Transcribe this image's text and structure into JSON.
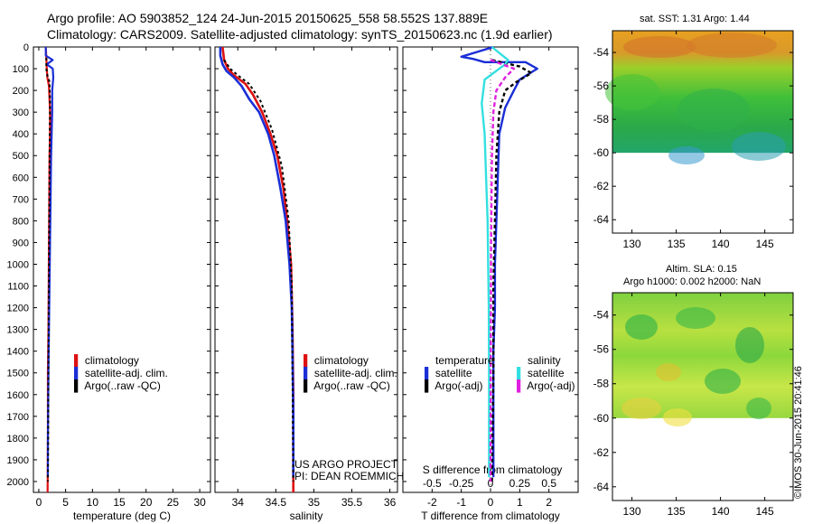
{
  "header": {
    "line1": "Argo profile: AO 5903852_124 24-Jun-2015 20150625_558 58.552S 137.889E",
    "line2": "Climatology: CARS2009. Satellite-adjusted climatology: synTS_20150623.nc (1.9d earlier)"
  },
  "depth_ticks": [
    "0",
    "100",
    "200",
    "300",
    "400",
    "500",
    "600",
    "700",
    "800",
    "900",
    "1000",
    "1100",
    "1200",
    "1300",
    "1400",
    "1500",
    "1600",
    "1700",
    "1800",
    "1900",
    "2000"
  ],
  "colors": {
    "climatology": "#dd1111",
    "satellite": "#1a2fd6",
    "argo": "#000000",
    "sal_satellite": "#33e0e0",
    "sal_argo": "#e020e0"
  },
  "legend": {
    "climatology": "climatology",
    "satellite_adj": "satellite-adj. clim.",
    "argo_raw": "Argo(..raw -QC)",
    "temperature": "temperature",
    "salinity": "salinity",
    "satellite": "satellite",
    "argo_adj": "Argo(-adj)"
  },
  "project": {
    "line1": "US ARGO PROJECT",
    "line2": "PI: DEAN ROEMMICH"
  },
  "map_sst": {
    "title": "sat. SST: 1.31  Argo: 1.44",
    "lat_ticks": [
      "-54",
      "-56",
      "-58",
      "-60",
      "-62",
      "-64"
    ],
    "lon_ticks": [
      "130",
      "135",
      "140",
      "145"
    ]
  },
  "map_sla": {
    "title1": "Altim. SLA: 0.15",
    "title2": "Argo h1000: 0.002 h2000: NaN",
    "lat_ticks": [
      "-54",
      "-56",
      "-58",
      "-60",
      "-62",
      "-64"
    ],
    "lon_ticks": [
      "130",
      "135",
      "140",
      "145"
    ]
  },
  "credit": "©IMOS 30-Jun-2015 20:41:46",
  "chart_data": [
    {
      "type": "line",
      "xlabel": "temperature (deg C)",
      "ylabel": "",
      "xlim": [
        -1,
        32
      ],
      "ylim": [
        0,
        2050
      ],
      "x_ticks": [
        "0",
        "5",
        "10",
        "15",
        "20",
        "25",
        "30"
      ],
      "series": [
        {
          "name": "climatology",
          "x": [
            1.3,
            1.4,
            1.5,
            1.6,
            1.9,
            2.1,
            2.1,
            2.0,
            1.95,
            1.9,
            1.85,
            1.8,
            1.7,
            1.7,
            1.65
          ],
          "y": [
            0,
            50,
            100,
            140,
            180,
            300,
            400,
            500,
            700,
            900,
            1100,
            1300,
            1500,
            1800,
            2050
          ]
        },
        {
          "name": "satellite-adj. clim.",
          "x": [
            1.3,
            1.3,
            2.6,
            1.5,
            2.6,
            2.7,
            2.5,
            2.5,
            2.4,
            2.3,
            2.2,
            2.1,
            2.0,
            1.9,
            1.8,
            1.7,
            1.7
          ],
          "y": [
            0,
            40,
            60,
            80,
            100,
            140,
            200,
            300,
            400,
            500,
            700,
            900,
            1100,
            1300,
            1500,
            1800,
            1980
          ]
        },
        {
          "name": "Argo(..raw -QC)",
          "x": [
            1.4,
            1.4,
            1.6,
            2.0,
            2.1,
            2.05,
            2.0,
            1.95,
            1.9,
            1.85,
            1.8,
            1.75,
            1.7
          ],
          "y": [
            50,
            100,
            130,
            160,
            250,
            400,
            600,
            800,
            1000,
            1200,
            1500,
            1800,
            2000
          ]
        }
      ]
    },
    {
      "type": "line",
      "xlabel": "salinity",
      "ylabel": "",
      "xlim": [
        33.7,
        36.1
      ],
      "ylim": [
        0,
        2050
      ],
      "x_ticks": [
        "34",
        "34.5",
        "35",
        "35.5",
        "36"
      ],
      "series": [
        {
          "name": "climatology",
          "x": [
            33.8,
            33.82,
            33.87,
            33.95,
            34.1,
            34.2,
            34.32,
            34.43,
            34.52,
            34.6,
            34.65,
            34.7,
            34.72,
            34.73,
            34.73
          ],
          "y": [
            0,
            60,
            100,
            130,
            170,
            220,
            300,
            400,
            500,
            650,
            800,
            1000,
            1300,
            1600,
            2050
          ]
        },
        {
          "name": "satellite-adj. clim.",
          "x": [
            33.77,
            33.77,
            33.8,
            33.85,
            33.95,
            34.05,
            34.15,
            34.28,
            34.4,
            34.48,
            34.56,
            34.63,
            34.68,
            34.71,
            34.72,
            34.73,
            34.73
          ],
          "y": [
            0,
            40,
            80,
            110,
            140,
            180,
            240,
            300,
            400,
            500,
            650,
            800,
            1000,
            1200,
            1400,
            1700,
            1980
          ]
        },
        {
          "name": "Argo(..raw -QC)",
          "x": [
            33.82,
            33.9,
            34.0,
            34.15,
            34.3,
            34.45,
            34.58,
            34.67,
            34.71,
            34.72,
            34.73
          ],
          "y": [
            60,
            100,
            130,
            170,
            250,
            380,
            550,
            800,
            1100,
            1500,
            2000
          ]
        }
      ]
    },
    {
      "type": "line",
      "xlabel": "T difference from climatology",
      "ylabel": "",
      "xlim": [
        -3,
        3
      ],
      "ylim": [
        0,
        2050
      ],
      "x_ticks": [
        "-2",
        "-1",
        "0",
        "1",
        "2"
      ],
      "top_axis_label": "S difference from climatology",
      "top_ticks": [
        "-0.5",
        "-0.25",
        "0",
        "0.25",
        "0.5"
      ],
      "series": [
        {
          "name": "temperature satellite",
          "x": [
            0.1,
            -1.0,
            -0.6,
            -0.2,
            1.2,
            1.6,
            1.0,
            0.8,
            0.5,
            0.3,
            0.25,
            0.2,
            0.15,
            0.15,
            0.1,
            0.1,
            0.1,
            0.1
          ],
          "y": [
            0,
            45,
            55,
            70,
            70,
            100,
            150,
            200,
            280,
            400,
            600,
            800,
            1000,
            1200,
            1400,
            1600,
            1800,
            1980
          ]
        },
        {
          "name": "temperature Argo(-adj)",
          "x": [
            0.05,
            1.0,
            1.4,
            0.9,
            0.5,
            0.3,
            0.2,
            0.15,
            0.1,
            0.1,
            0.05
          ],
          "y": [
            60,
            90,
            120,
            160,
            200,
            300,
            500,
            800,
            1100,
            1500,
            2000
          ]
        },
        {
          "name": "salinity satellite",
          "x": [
            0.05,
            0.6,
            0.5,
            -0.2,
            -0.3,
            -0.2,
            -0.15,
            -0.1,
            -0.08,
            -0.06,
            -0.05,
            -0.05,
            -0.05
          ],
          "y": [
            0,
            60,
            80,
            150,
            260,
            400,
            600,
            800,
            1000,
            1200,
            1500,
            1800,
            1980
          ]
        },
        {
          "name": "salinity Argo(-adj)",
          "x": [
            0.0,
            0.8,
            0.5,
            0.2,
            0.1,
            0.05,
            0.02,
            0.0
          ],
          "y": [
            60,
            100,
            140,
            200,
            300,
            500,
            900,
            2000
          ]
        }
      ]
    }
  ]
}
